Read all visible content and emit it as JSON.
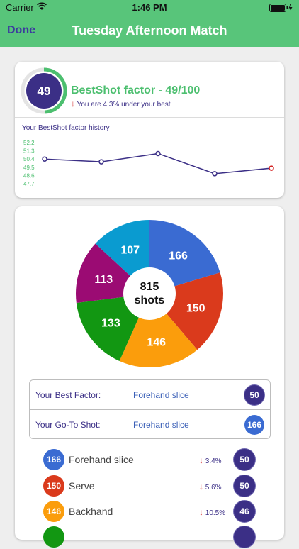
{
  "status_bar": {
    "carrier": "Carrier",
    "time": "1:46 PM",
    "wifi_icon": "wifi-icon",
    "battery_icon": "battery-icon"
  },
  "nav": {
    "done_label": "Done",
    "title": "Tuesday Afternoon Match",
    "background": "#58c57a"
  },
  "score": {
    "value": "49",
    "ring_fraction": 0.49,
    "title": "BestShot factor - 49/100",
    "arrow": "↓",
    "subtitle": "You are 4.3% under your best",
    "ring_color": "#4cbf6f",
    "circle_color": "#3b2f86"
  },
  "history": {
    "title": "Your BestShot factor history",
    "y_ticks": [
      "52.2",
      "51.3",
      "50.4",
      "49.5",
      "48.6",
      "47.7"
    ],
    "ylim": [
      47.7,
      52.2
    ],
    "values": [
      50.4,
      50.1,
      51.0,
      48.8,
      49.4
    ],
    "line_color": "#3b2f86",
    "last_point_color": "#d21f1f"
  },
  "chart_data": {
    "type": "pie",
    "total": "815",
    "total_label": "shots",
    "slices": [
      {
        "label": "166",
        "value": 166,
        "color": "#3a6bd2"
      },
      {
        "label": "150",
        "value": 150,
        "color": "#da3a1c"
      },
      {
        "label": "146",
        "value": 146,
        "color": "#fb9d0c"
      },
      {
        "label": "133",
        "value": 133,
        "color": "#129712"
      },
      {
        "label": "113",
        "value": 113,
        "color": "#9b0b73"
      },
      {
        "label": "107",
        "value": 107,
        "color": "#0a9bd0"
      }
    ]
  },
  "best": {
    "best_factor_label": "Your Best Factor:",
    "best_factor_value": "Forehand slice",
    "best_factor_badge": "50",
    "best_factor_color": "#3b2f86",
    "goto_label": "Your Go-To Shot:",
    "goto_value": "Forehand slice",
    "goto_badge": "166",
    "goto_color": "#3a6bd2"
  },
  "shots": [
    {
      "count": "166",
      "name": "Forehand slice",
      "arrow": "↓",
      "delta": "3.4%",
      "factor": "50",
      "color": "#3a6bd2"
    },
    {
      "count": "150",
      "name": "Serve",
      "arrow": "↓",
      "delta": "5.6%",
      "factor": "50",
      "color": "#da3a1c"
    },
    {
      "count": "146",
      "name": "Backhand",
      "arrow": "↓",
      "delta": "10.5%",
      "factor": "46",
      "color": "#fb9d0c"
    },
    {
      "count": "",
      "name": "",
      "arrow": "",
      "delta": "",
      "factor": "",
      "color": "#129712"
    }
  ]
}
